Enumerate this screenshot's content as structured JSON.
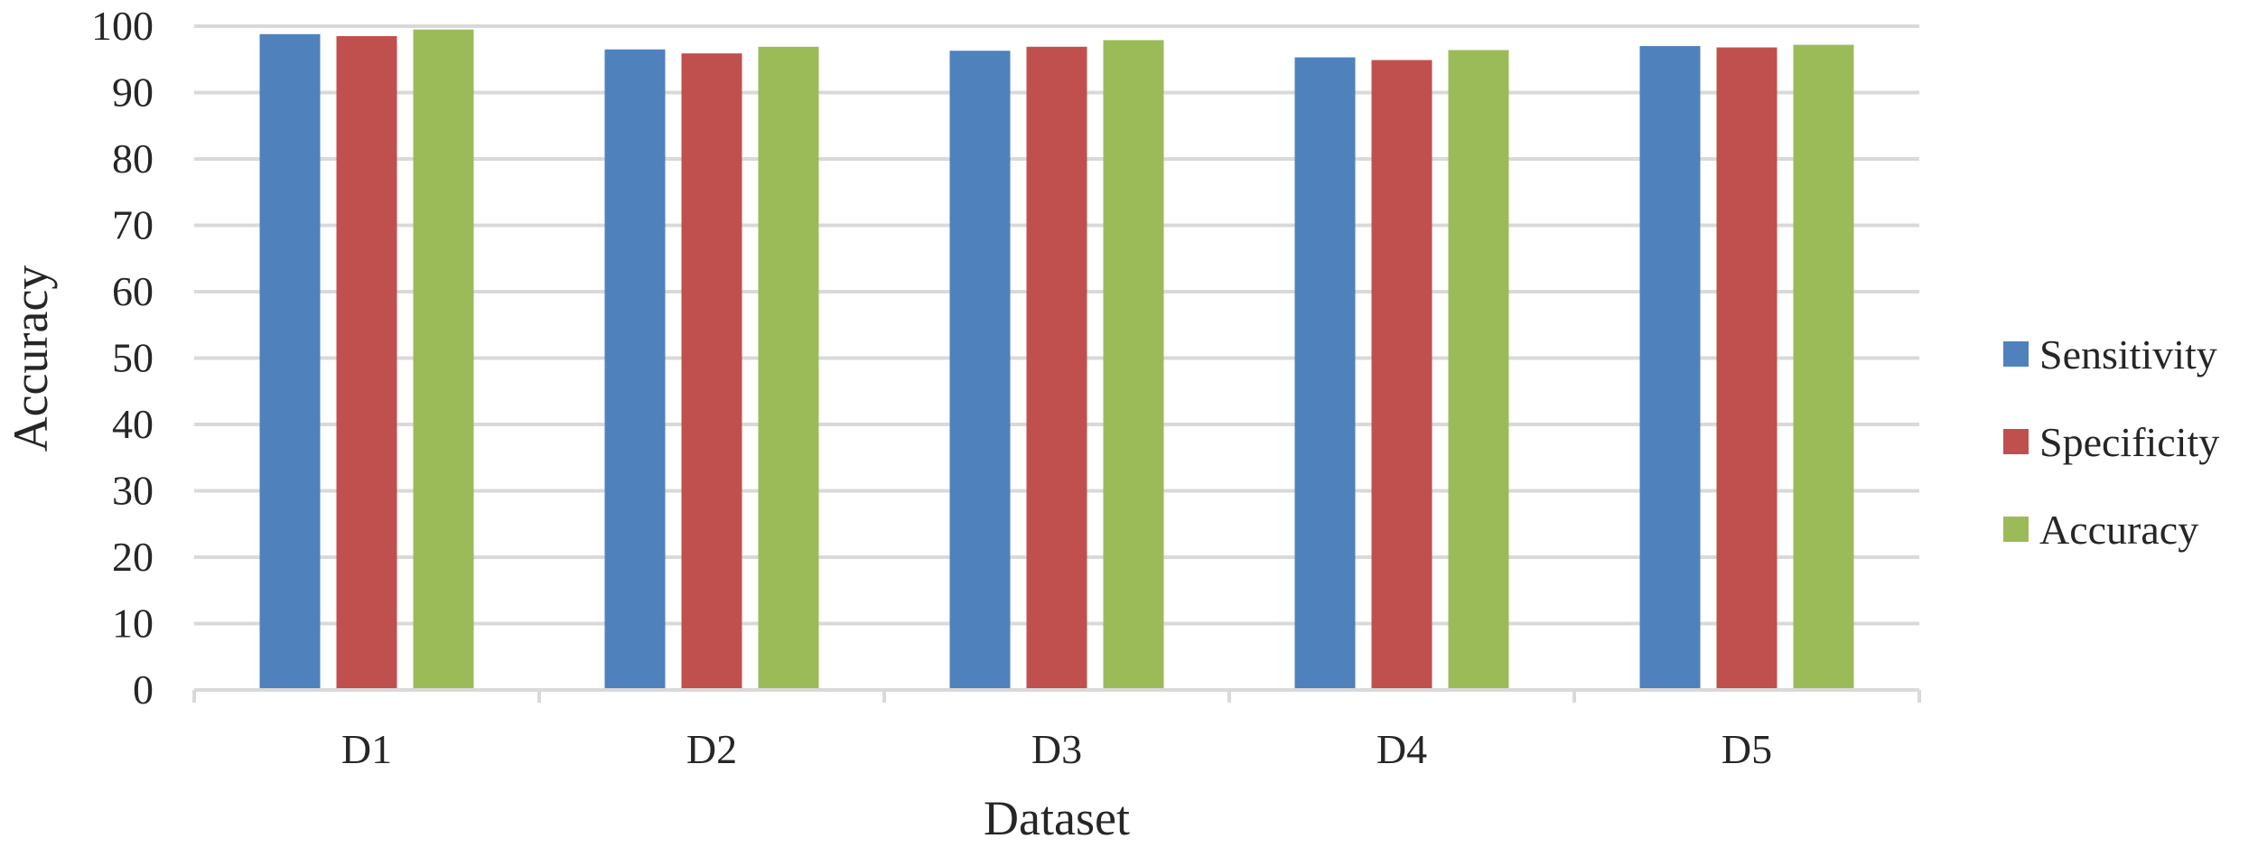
{
  "chart_data": {
    "type": "bar",
    "title": "",
    "xlabel": "Dataset",
    "ylabel": "Accuracy",
    "categories": [
      "D1",
      "D2",
      "D3",
      "D4",
      "D5"
    ],
    "series": [
      {
        "name": "Sensitivity",
        "color": "#4F81BD",
        "values": [
          98.8,
          96.5,
          96.3,
          95.3,
          97.0
        ]
      },
      {
        "name": "Specificity",
        "color": "#C0504D",
        "values": [
          98.5,
          95.9,
          96.9,
          94.9,
          96.8
        ]
      },
      {
        "name": "Accuracy",
        "color": "#9BBB59",
        "values": [
          99.5,
          96.9,
          97.9,
          96.4,
          97.2
        ]
      }
    ],
    "ylim": [
      0,
      100
    ],
    "yticks": [
      "0",
      "10",
      "20",
      "30",
      "40",
      "50",
      "60",
      "70",
      "80",
      "90",
      "100"
    ],
    "grid": true,
    "legend_position": "right"
  }
}
